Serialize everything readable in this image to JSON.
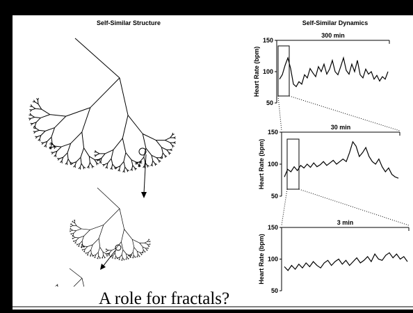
{
  "slide": {
    "title": "A role for fractals?",
    "left_heading": "Self-Similar Structure",
    "right_heading": "Self-Similar Dynamics"
  },
  "chart_data": [
    {
      "type": "line",
      "title": "300 min",
      "y_label": "Heart Rate (bpm)",
      "ylim": [
        50,
        150
      ],
      "yticks": [
        50,
        100,
        150
      ],
      "color": "#000000",
      "values": [
        88,
        95,
        110,
        122,
        105,
        80,
        76,
        84,
        80,
        95,
        90,
        105,
        98,
        92,
        108,
        100,
        112,
        96,
        104,
        118,
        100,
        95,
        108,
        122,
        102,
        96,
        112,
        100,
        118,
        95,
        90,
        104,
        96,
        100,
        88,
        94,
        85,
        92,
        88,
        100
      ]
    },
    {
      "type": "line",
      "title": "30 min",
      "y_label": "Heart Rate (bpm)",
      "ylim": [
        50,
        150
      ],
      "yticks": [
        50,
        100,
        150
      ],
      "color": "#000000",
      "values": [
        80,
        92,
        88,
        96,
        90,
        98,
        94,
        100,
        95,
        102,
        96,
        99,
        104,
        98,
        102,
        106,
        100,
        104,
        108,
        104,
        118,
        135,
        128,
        112,
        118,
        126,
        112,
        104,
        100,
        108,
        96,
        88,
        94,
        84,
        80,
        78
      ]
    },
    {
      "type": "line",
      "title": "3 min",
      "y_label": "Heart Rate (bpm)",
      "ylim": [
        50,
        150
      ],
      "yticks": [
        50,
        100,
        150
      ],
      "color": "#000000",
      "values": [
        88,
        82,
        90,
        84,
        92,
        86,
        94,
        88,
        96,
        90,
        86,
        94,
        98,
        90,
        96,
        100,
        92,
        98,
        90,
        96,
        102,
        94,
        98,
        104,
        96,
        108,
        100,
        98,
        106,
        110,
        102,
        108,
        100,
        104,
        96
      ]
    }
  ]
}
